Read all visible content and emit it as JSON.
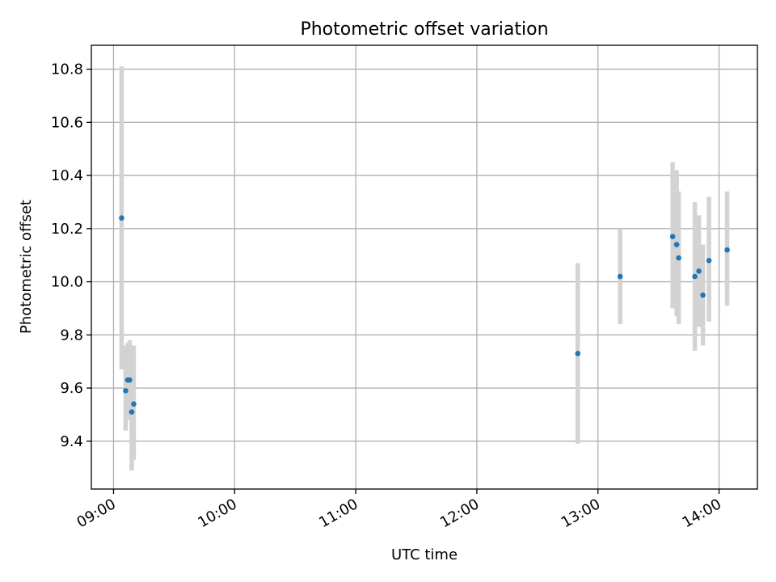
{
  "chart_data": {
    "type": "scatter",
    "title": "Photometric offset variation",
    "xlabel": "UTC time",
    "ylabel": "Photometric offset",
    "x_ticks": [
      "09:00",
      "10:00",
      "11:00",
      "12:00",
      "13:00",
      "14:00"
    ],
    "y_ticks": [
      "9.4",
      "9.6",
      "9.8",
      "10.0",
      "10.2",
      "10.4",
      "10.6",
      "10.8"
    ],
    "xlim": [
      "08:49",
      "14:19"
    ],
    "ylim": [
      9.22,
      10.89
    ],
    "grid": true,
    "series": [
      {
        "x": [
          "09:04",
          "09:06",
          "09:07",
          "09:08",
          "09:09",
          "09:10",
          "12:50",
          "13:11",
          "13:37",
          "13:39",
          "13:40",
          "13:48",
          "13:50",
          "13:52",
          "13:55",
          "14:04"
        ],
        "y": [
          10.24,
          9.59,
          9.63,
          9.63,
          9.51,
          9.54,
          9.73,
          10.02,
          10.17,
          10.14,
          10.09,
          10.02,
          10.04,
          9.95,
          10.08,
          10.12
        ],
        "err_low": [
          9.67,
          9.44,
          9.48,
          9.49,
          9.29,
          9.33,
          9.39,
          9.84,
          9.9,
          9.87,
          9.84,
          9.74,
          9.83,
          9.76,
          9.85,
          9.91
        ],
        "err_high": [
          10.81,
          9.76,
          9.77,
          9.78,
          9.73,
          9.76,
          10.07,
          10.2,
          10.45,
          10.42,
          10.34,
          10.3,
          10.25,
          10.14,
          10.32,
          10.34
        ]
      }
    ],
    "colors": {
      "marker": "#1f77b4",
      "errorbar": "#d3d3d3",
      "grid": "#b0b0b0",
      "frame": "#000000"
    }
  }
}
